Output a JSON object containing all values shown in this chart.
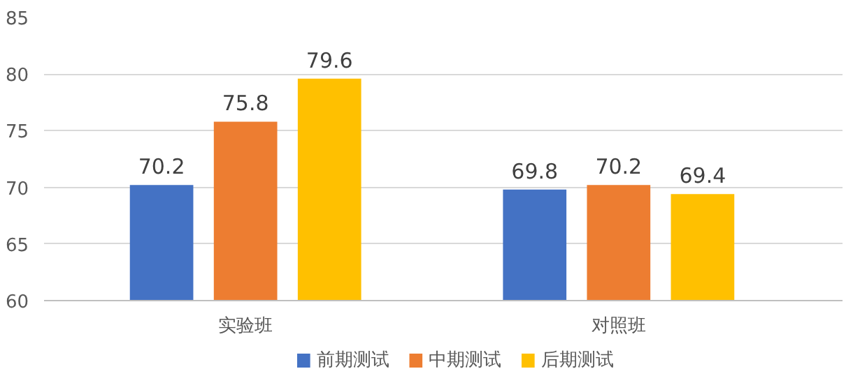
{
  "chart_data": {
    "type": "bar",
    "categories": [
      "实验班",
      "对照班"
    ],
    "series": [
      {
        "name": "前期测试",
        "color": "#4472c4",
        "values": [
          70.2,
          69.8
        ]
      },
      {
        "name": "中期测试",
        "color": "#ed7d31",
        "values": [
          75.8,
          70.2
        ]
      },
      {
        "name": "后期测试",
        "color": "#ffc000",
        "values": [
          79.6,
          69.4
        ]
      }
    ],
    "ylim": [
      60,
      85
    ],
    "yticks": [
      60,
      65,
      70,
      75,
      80,
      85
    ],
    "grid": "y",
    "data_labels": true,
    "legend": "bottom"
  }
}
